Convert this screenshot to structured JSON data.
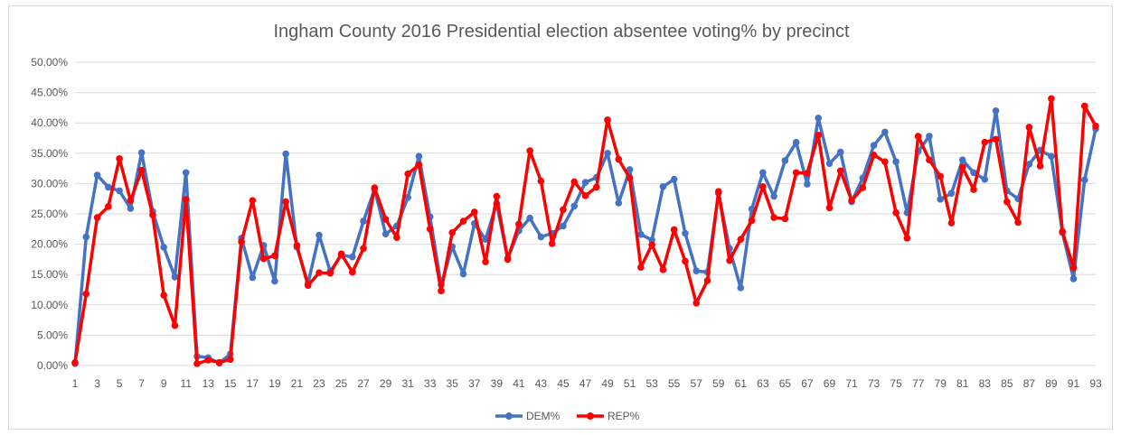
{
  "chart_data": {
    "type": "line",
    "title": "Ingham County 2016 Presidential election absentee voting% by precinct",
    "xlabel": "",
    "ylabel": "",
    "ylim": [
      0,
      0.5
    ],
    "yticks": [
      "0.00%",
      "5.00%",
      "10.00%",
      "15.00%",
      "20.00%",
      "25.00%",
      "30.00%",
      "35.00%",
      "40.00%",
      "45.00%",
      "50.00%"
    ],
    "x": [
      1,
      2,
      3,
      4,
      5,
      6,
      7,
      8,
      9,
      10,
      11,
      12,
      13,
      14,
      15,
      16,
      17,
      18,
      19,
      20,
      21,
      22,
      23,
      24,
      25,
      26,
      27,
      28,
      29,
      30,
      31,
      32,
      33,
      34,
      35,
      36,
      37,
      38,
      39,
      40,
      41,
      42,
      43,
      44,
      45,
      46,
      47,
      48,
      49,
      50,
      51,
      52,
      53,
      54,
      55,
      56,
      57,
      58,
      59,
      60,
      61,
      62,
      63,
      64,
      65,
      66,
      67,
      68,
      69,
      70,
      71,
      72,
      73,
      74,
      75,
      76,
      77,
      78,
      79,
      80,
      81,
      82,
      83,
      84,
      85,
      86,
      87,
      88,
      89,
      90,
      91,
      92,
      93
    ],
    "xtick_labels": [
      "1",
      "3",
      "5",
      "7",
      "9",
      "11",
      "13",
      "15",
      "17",
      "19",
      "21",
      "23",
      "25",
      "27",
      "29",
      "31",
      "33",
      "35",
      "37",
      "39",
      "41",
      "43",
      "45",
      "47",
      "49",
      "51",
      "53",
      "55",
      "57",
      "59",
      "61",
      "63",
      "65",
      "67",
      "69",
      "71",
      "73",
      "75",
      "77",
      "79",
      "81",
      "83",
      "85",
      "87",
      "89",
      "91",
      "93"
    ],
    "grid": true,
    "legend_position": "bottom",
    "series": [
      {
        "name": "DEM%",
        "color": "#4472c4",
        "values": [
          0.003,
          0.212,
          0.314,
          0.294,
          0.288,
          0.259,
          0.351,
          0.254,
          0.195,
          0.146,
          0.318,
          0.015,
          0.013,
          0.004,
          0.019,
          0.21,
          0.145,
          0.198,
          0.139,
          0.349,
          0.195,
          0.135,
          0.215,
          0.155,
          0.182,
          0.179,
          0.238,
          0.291,
          0.217,
          0.23,
          0.277,
          0.345,
          0.245,
          0.133,
          0.196,
          0.151,
          0.234,
          0.208,
          0.267,
          0.177,
          0.222,
          0.243,
          0.212,
          0.218,
          0.23,
          0.263,
          0.302,
          0.31,
          0.35,
          0.268,
          0.323,
          0.216,
          0.207,
          0.295,
          0.307,
          0.218,
          0.156,
          0.154,
          0.284,
          0.193,
          0.128,
          0.258,
          0.318,
          0.279,
          0.338,
          0.368,
          0.299,
          0.408,
          0.333,
          0.352,
          0.27,
          0.309,
          0.363,
          0.385,
          0.336,
          0.252,
          0.353,
          0.378,
          0.274,
          0.284,
          0.339,
          0.318,
          0.307,
          0.42,
          0.288,
          0.275,
          0.332,
          0.355,
          0.345,
          0.219,
          0.143,
          0.306,
          0.39
        ]
      },
      {
        "name": "REP%",
        "color": "#ff0000",
        "values": [
          0.005,
          0.118,
          0.244,
          0.262,
          0.341,
          0.272,
          0.322,
          0.248,
          0.116,
          0.066,
          0.274,
          0.003,
          0.009,
          0.005,
          0.01,
          0.204,
          0.272,
          0.176,
          0.181,
          0.27,
          0.198,
          0.132,
          0.153,
          0.152,
          0.184,
          0.154,
          0.193,
          0.293,
          0.241,
          0.211,
          0.316,
          0.331,
          0.225,
          0.123,
          0.219,
          0.238,
          0.253,
          0.171,
          0.279,
          0.175,
          0.233,
          0.354,
          0.304,
          0.201,
          0.257,
          0.303,
          0.28,
          0.294,
          0.405,
          0.34,
          0.309,
          0.162,
          0.199,
          0.158,
          0.224,
          0.172,
          0.103,
          0.14,
          0.287,
          0.173,
          0.208,
          0.239,
          0.295,
          0.244,
          0.242,
          0.318,
          0.317,
          0.38,
          0.26,
          0.321,
          0.272,
          0.293,
          0.347,
          0.336,
          0.252,
          0.21,
          0.378,
          0.339,
          0.312,
          0.235,
          0.327,
          0.29,
          0.368,
          0.373,
          0.27,
          0.236,
          0.393,
          0.329,
          0.44,
          0.221,
          0.161,
          0.428,
          0.395
        ]
      }
    ]
  }
}
